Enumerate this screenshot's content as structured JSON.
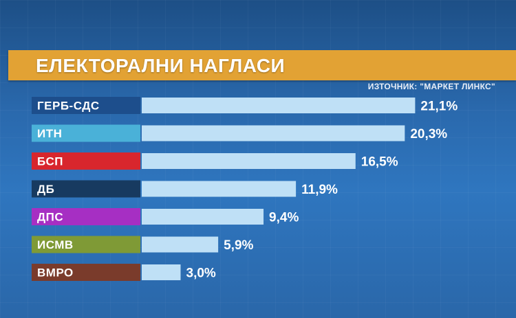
{
  "title": "ЕЛЕКТОРАЛНИ НАГЛАСИ",
  "source": "ИЗТОЧНИК: \"МАРКЕТ ЛИНКС\"",
  "chart_data": {
    "type": "bar",
    "orientation": "horizontal",
    "title": "ЕЛЕКТОРАЛНИ НАГЛАСИ",
    "categories": [
      "ГЕРБ-СДС",
      "ИТН",
      "БСП",
      "ДБ",
      "ДПС",
      "ИСМВ",
      "ВМРО"
    ],
    "values": [
      21.1,
      20.3,
      16.5,
      11.9,
      9.4,
      5.9,
      3.0
    ],
    "value_labels": [
      "21,1%",
      "20,3%",
      "16,5%",
      "11,9%",
      "9,4%",
      "5,9%",
      "3,0%"
    ],
    "label_colors": [
      "#1d4e8c",
      "#4ab1d8",
      "#d8262d",
      "#173a60",
      "#a62fc3",
      "#7f9a36",
      "#7a3b2b"
    ],
    "bar_color": "#bfe0f6",
    "xlim": [
      0,
      22.3
    ],
    "grid": false,
    "legend": "none"
  }
}
